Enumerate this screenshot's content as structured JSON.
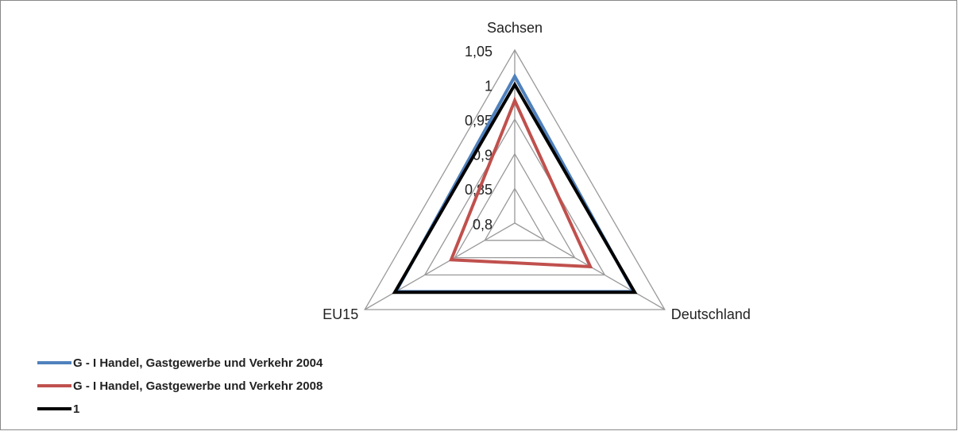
{
  "chart_data": {
    "type": "radar",
    "categories": [
      "Sachsen",
      "Deutschland",
      "EU15"
    ],
    "series": [
      {
        "name": "G - I Handel, Gastgewerbe und Verkehr 2004",
        "color": "#4f81bd",
        "values": [
          1.012,
          0.998,
          0.998
        ]
      },
      {
        "name": "G - I Handel, Gastgewerbe und Verkehr 2008",
        "color": "#c0504d",
        "values": [
          0.977,
          0.926,
          0.906
        ]
      },
      {
        "name": "1",
        "color": "#000000",
        "values": [
          1,
          1,
          1
        ]
      }
    ],
    "ylim": [
      0.8,
      1.05
    ],
    "yticks": [
      {
        "value": 0.8,
        "label": "0,8"
      },
      {
        "value": 0.85,
        "label": "0,85"
      },
      {
        "value": 0.9,
        "label": "0,9"
      },
      {
        "value": 0.95,
        "label": "0,95"
      },
      1,
      {
        "value": 1.05,
        "label": "1,05"
      }
    ],
    "grid": true,
    "legend": "bottom-left"
  }
}
